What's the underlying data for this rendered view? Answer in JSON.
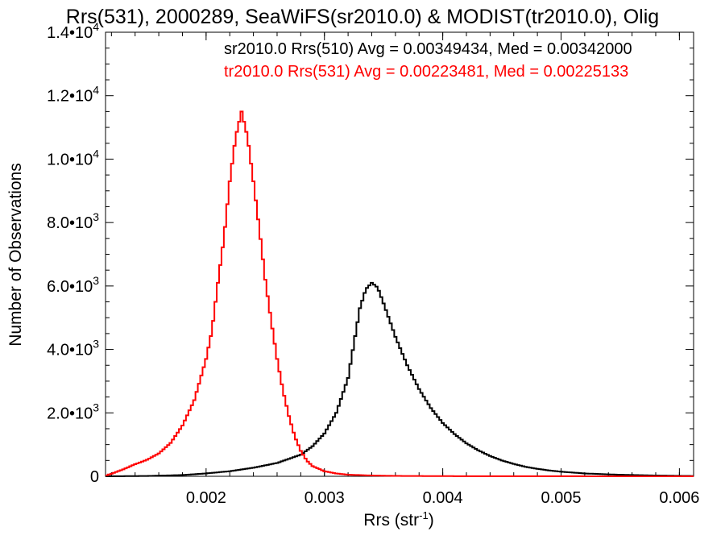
{
  "chart_data": {
    "type": "histogram",
    "title": "Rrs(531), 2000289, SeaWiFS(sr2010.0) & MODIST(tr2010.0), Olig",
    "xlabel": "Rrs (str",
    "xlabel_sup": "-1",
    "xlabel_close": ")",
    "ylabel": "Number of Observations",
    "xlim": [
      0.00115,
      0.00612
    ],
    "ylim": [
      0,
      14000
    ],
    "x_ticks": [
      {
        "value": 0.002,
        "label": "0.002"
      },
      {
        "value": 0.003,
        "label": "0.003"
      },
      {
        "value": 0.004,
        "label": "0.004"
      },
      {
        "value": 0.005,
        "label": "0.005"
      },
      {
        "value": 0.006,
        "label": "0.006"
      }
    ],
    "y_ticks": [
      {
        "value": 0,
        "mantissa": "0",
        "exp": ""
      },
      {
        "value": 2000,
        "mantissa": "2.0•10",
        "exp": "3"
      },
      {
        "value": 4000,
        "mantissa": "4.0•10",
        "exp": "3"
      },
      {
        "value": 6000,
        "mantissa": "6.0•10",
        "exp": "3"
      },
      {
        "value": 8000,
        "mantissa": "8.0•10",
        "exp": "3"
      },
      {
        "value": 10000,
        "mantissa": "1.0•10",
        "exp": "4"
      },
      {
        "value": 12000,
        "mantissa": "1.2•10",
        "exp": "4"
      },
      {
        "value": 14000,
        "mantissa": "1.4•10",
        "exp": "4"
      }
    ],
    "legend_position": "top-right",
    "series": [
      {
        "name": "sr2010.0 Rrs(510) Avg = 0.00349434, Med = 0.00342000",
        "color": "#000000",
        "points": [
          [
            0.00115,
            0
          ],
          [
            0.0015,
            10
          ],
          [
            0.0018,
            40
          ],
          [
            0.002,
            90
          ],
          [
            0.0022,
            160
          ],
          [
            0.0024,
            270
          ],
          [
            0.0026,
            420
          ],
          [
            0.0028,
            680
          ],
          [
            0.0029,
            950
          ],
          [
            0.003,
            1350
          ],
          [
            0.0031,
            2000
          ],
          [
            0.0032,
            3100
          ],
          [
            0.00325,
            4200
          ],
          [
            0.0033,
            5300
          ],
          [
            0.00335,
            5900
          ],
          [
            0.0034,
            6100
          ],
          [
            0.00345,
            5950
          ],
          [
            0.0035,
            5450
          ],
          [
            0.0036,
            4400
          ],
          [
            0.0037,
            3500
          ],
          [
            0.0038,
            2750
          ],
          [
            0.0039,
            2150
          ],
          [
            0.004,
            1680
          ],
          [
            0.0041,
            1330
          ],
          [
            0.0042,
            1040
          ],
          [
            0.0043,
            820
          ],
          [
            0.0044,
            640
          ],
          [
            0.0045,
            500
          ],
          [
            0.0046,
            390
          ],
          [
            0.0047,
            300
          ],
          [
            0.0048,
            235
          ],
          [
            0.0049,
            185
          ],
          [
            0.005,
            145
          ],
          [
            0.0052,
            90
          ],
          [
            0.0054,
            60
          ],
          [
            0.0056,
            40
          ],
          [
            0.0058,
            25
          ],
          [
            0.006,
            15
          ],
          [
            0.00612,
            10
          ]
        ]
      },
      {
        "name": "tr2010.0 Rrs(531) Avg = 0.00223481, Med = 0.00225133",
        "color": "#ff0000",
        "points": [
          [
            0.00115,
            20
          ],
          [
            0.0012,
            80
          ],
          [
            0.0013,
            220
          ],
          [
            0.0014,
            380
          ],
          [
            0.0015,
            520
          ],
          [
            0.0016,
            720
          ],
          [
            0.0017,
            1050
          ],
          [
            0.0018,
            1600
          ],
          [
            0.0019,
            2400
          ],
          [
            0.002,
            3700
          ],
          [
            0.00205,
            4600
          ],
          [
            0.0021,
            6100
          ],
          [
            0.00215,
            7500
          ],
          [
            0.0022,
            9300
          ],
          [
            0.00225,
            10700
          ],
          [
            0.0023,
            11500
          ],
          [
            0.00235,
            10700
          ],
          [
            0.0024,
            9300
          ],
          [
            0.00245,
            7800
          ],
          [
            0.0025,
            6200
          ],
          [
            0.00255,
            4900
          ],
          [
            0.0026,
            3700
          ],
          [
            0.00265,
            2700
          ],
          [
            0.0027,
            1900
          ],
          [
            0.00275,
            1250
          ],
          [
            0.0028,
            800
          ],
          [
            0.00285,
            500
          ],
          [
            0.0029,
            320
          ],
          [
            0.003,
            160
          ],
          [
            0.0031,
            90
          ],
          [
            0.0032,
            50
          ],
          [
            0.0034,
            25
          ],
          [
            0.0036,
            12
          ],
          [
            0.004,
            5
          ],
          [
            0.005,
            2
          ],
          [
            0.00612,
            0
          ]
        ]
      }
    ]
  }
}
